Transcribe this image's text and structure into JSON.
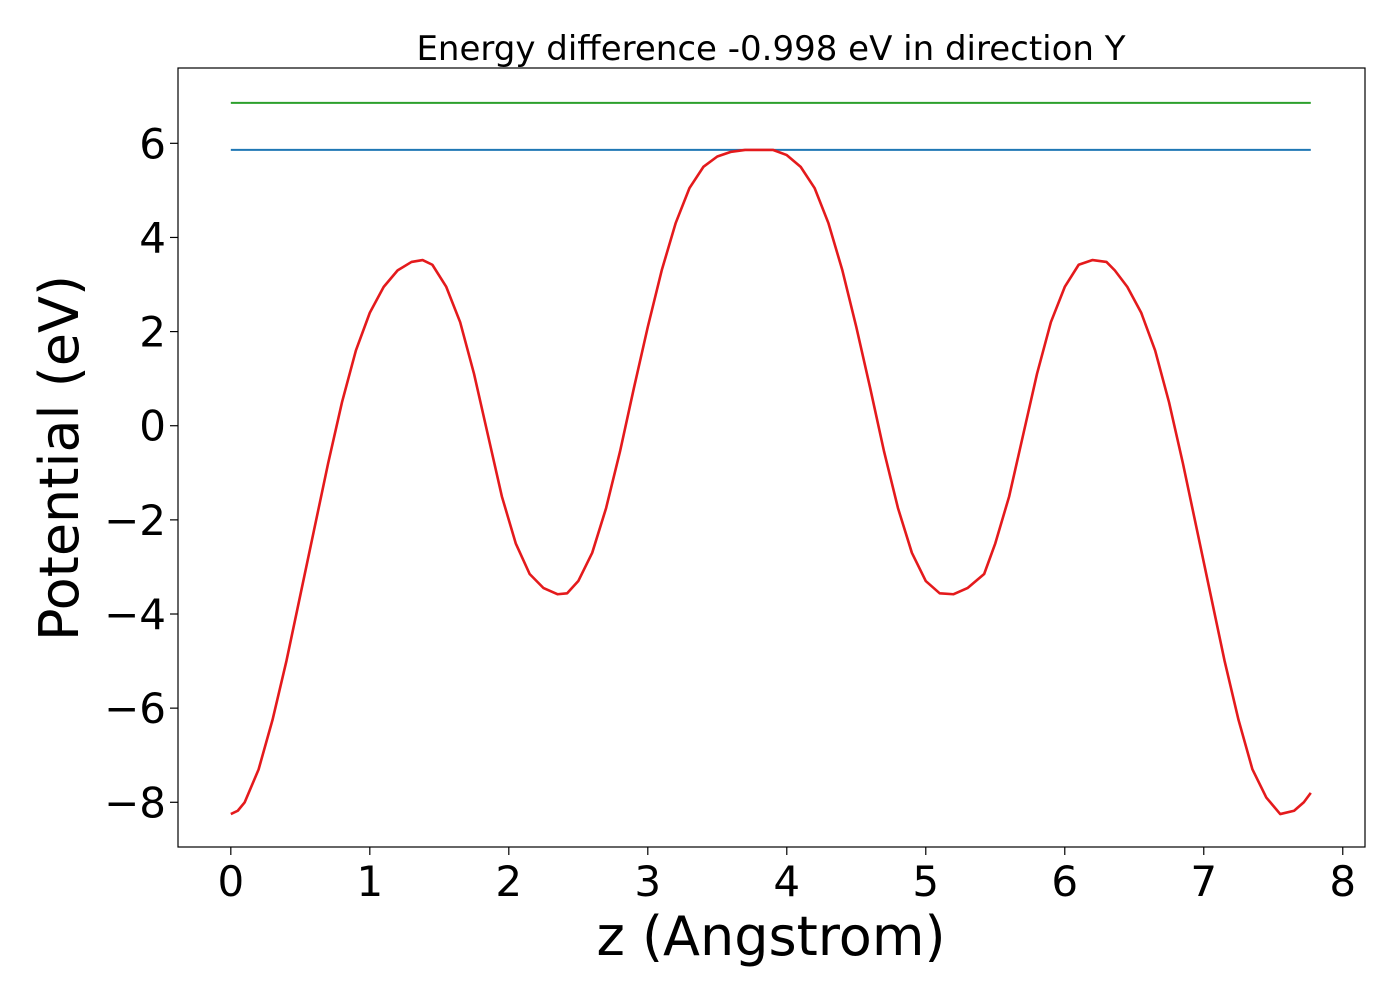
{
  "chart_data": {
    "type": "line",
    "title": "Energy difference -0.998 eV in direction Y",
    "xlabel": "z (Angstrom)",
    "ylabel": "Potential (eV)",
    "xlim": [
      -0.38,
      8.16
    ],
    "ylim": [
      -8.95,
      7.6
    ],
    "xticks": [
      0,
      1,
      2,
      3,
      4,
      5,
      6,
      7,
      8
    ],
    "yticks": [
      -8,
      -6,
      -4,
      -2,
      0,
      2,
      4,
      6
    ],
    "xtick_labels": [
      "0",
      "1",
      "2",
      "3",
      "4",
      "5",
      "6",
      "7",
      "8"
    ],
    "ytick_labels": [
      "−8",
      "−6",
      "−4",
      "−2",
      "0",
      "2",
      "4",
      "6"
    ],
    "grid": false,
    "legend": "none",
    "series": [
      {
        "color": "#2ca02c",
        "x": [
          0,
          7.77
        ],
        "y": [
          6.86,
          6.86
        ]
      },
      {
        "color": "#1f77b4",
        "x": [
          0,
          7.77
        ],
        "y": [
          5.86,
          5.86
        ]
      },
      {
        "color": "#e41a1c",
        "x": [
          0,
          0.05,
          0.1,
          0.2,
          0.3,
          0.4,
          0.5,
          0.6,
          0.7,
          0.8,
          0.9,
          1.0,
          1.1,
          1.2,
          1.3,
          1.38,
          1.45,
          1.55,
          1.65,
          1.75,
          1.85,
          1.95,
          2.05,
          2.15,
          2.25,
          2.35,
          2.42,
          2.5,
          2.6,
          2.7,
          2.8,
          2.9,
          3.0,
          3.1,
          3.2,
          3.3,
          3.4,
          3.5,
          3.6,
          3.7,
          3.8,
          3.9,
          4.0,
          4.1,
          4.2,
          4.3,
          4.4,
          4.5,
          4.6,
          4.7,
          4.8,
          4.9,
          5.0,
          5.1,
          5.2,
          5.3,
          5.42,
          5.5,
          5.6,
          5.7,
          5.8,
          5.9,
          6.0,
          6.1,
          6.2,
          6.3,
          6.36,
          6.45,
          6.55,
          6.65,
          6.75,
          6.85,
          6.95,
          7.05,
          7.15,
          7.25,
          7.35,
          7.45,
          7.55,
          7.65,
          7.72,
          7.77
        ],
        "y": [
          -8.25,
          -8.18,
          -8.0,
          -7.3,
          -6.25,
          -5.0,
          -3.6,
          -2.2,
          -0.8,
          0.5,
          1.6,
          2.4,
          2.95,
          3.3,
          3.48,
          3.52,
          3.42,
          2.95,
          2.2,
          1.1,
          -0.2,
          -1.5,
          -2.5,
          -3.15,
          -3.45,
          -3.58,
          -3.56,
          -3.3,
          -2.7,
          -1.75,
          -0.55,
          0.8,
          2.1,
          3.3,
          4.3,
          5.05,
          5.5,
          5.72,
          5.82,
          5.86,
          5.86,
          5.86,
          5.75,
          5.5,
          5.05,
          4.3,
          3.3,
          2.1,
          0.8,
          -0.55,
          -1.75,
          -2.7,
          -3.3,
          -3.56,
          -3.58,
          -3.45,
          -3.15,
          -2.5,
          -1.5,
          -0.2,
          1.1,
          2.2,
          2.95,
          3.42,
          3.52,
          3.48,
          3.3,
          2.95,
          2.4,
          1.6,
          0.5,
          -0.8,
          -2.2,
          -3.6,
          -5.0,
          -6.25,
          -7.3,
          -7.9,
          -8.25,
          -8.18,
          -8.0,
          -7.8
        ]
      }
    ]
  }
}
